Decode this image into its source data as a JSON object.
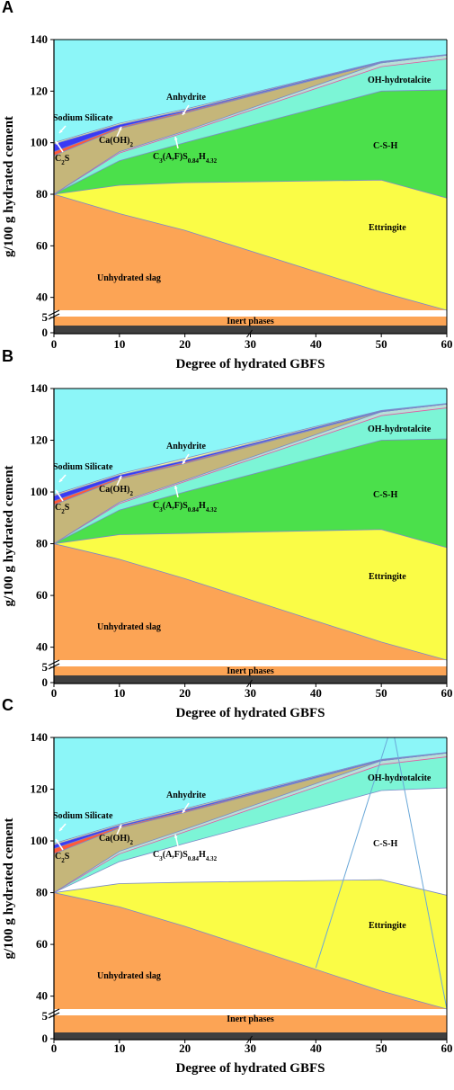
{
  "chart_data": [
    {
      "panel": "A",
      "type": "area",
      "xlabel": "Degree of hydrated GBFS",
      "ylabel": "g/100 g hydrated cement",
      "xlim": [
        0,
        60
      ],
      "ylim": [
        0,
        140
      ],
      "x_ticks": [
        0,
        10,
        20,
        30,
        40,
        50,
        60
      ],
      "y_ticks": [
        0,
        5,
        40,
        60,
        80,
        100,
        120,
        140
      ],
      "y_axis_break": "between 5 and 35",
      "x": [
        0,
        10,
        20,
        50,
        60
      ],
      "boundaries": [
        {
          "name": "Unhydrated slag (top)",
          "y": [
            80,
            72.5,
            66,
            42,
            35
          ]
        },
        {
          "name": "Ettringite (top)",
          "y": [
            80,
            83.5,
            84.5,
            85.5,
            78.5
          ]
        },
        {
          "name": "C-S-H (top)",
          "y": [
            80,
            93,
            100,
            120,
            120.5
          ]
        },
        {
          "name": "C3(A,F)S0.84H4.32 (top)",
          "y": [
            80,
            96,
            104,
            129.5,
            132.5
          ]
        },
        {
          "name": "OH-hydrotalcite (top)",
          "y": [
            80,
            96.5,
            104.5,
            131,
            134
          ]
        },
        {
          "name": "C2S (top)",
          "y": [
            95,
            105.5,
            111.5,
            131,
            134
          ]
        },
        {
          "name": "Ca(OH)2 (top)",
          "y": [
            96.5,
            106,
            112,
            131,
            134
          ]
        },
        {
          "name": "Sodium Silicate (top)",
          "y": [
            99.5,
            107,
            112.5,
            131.3,
            134
          ]
        },
        {
          "name": "Anhydrite (top)",
          "y": [
            100,
            107.5,
            113,
            131.5,
            134.2
          ]
        }
      ],
      "annotations": [
        "Sodium Silicate",
        "Ca(OH)2",
        "Anhydrite",
        "C2S",
        "C3(A,F)S0.84H4.32",
        "OH-hydrotalcite",
        "C-S-H",
        "Ettringite",
        "Unhydrated slag",
        "Inert phases"
      ]
    },
    {
      "panel": "B",
      "type": "area",
      "xlabel": "Degree of hydrated GBFS",
      "ylabel": "g/100 g hydrated cement",
      "xlim": [
        0,
        60
      ],
      "ylim": [
        0,
        140
      ],
      "x_ticks": [
        0,
        10,
        20,
        30,
        40,
        50,
        60
      ],
      "y_ticks": [
        0,
        5,
        40,
        60,
        80,
        100,
        120,
        140
      ],
      "y_axis_break": "between 5 and 35",
      "x": [
        0,
        10,
        20,
        50,
        60
      ],
      "boundaries": [
        {
          "name": "Unhydrated slag (top)",
          "y": [
            80,
            74,
            66.5,
            42,
            35
          ]
        },
        {
          "name": "Ettringite (top)",
          "y": [
            80,
            83.5,
            84,
            85.5,
            78.5
          ]
        },
        {
          "name": "C-S-H (top)",
          "y": [
            80,
            93,
            100,
            120,
            120.5
          ]
        },
        {
          "name": "C3(A,F)S0.84H4.32 (top)",
          "y": [
            80,
            95.5,
            104,
            129.5,
            132.5
          ]
        },
        {
          "name": "OH-hydrotalcite (top)",
          "y": [
            80,
            96,
            104.5,
            131,
            134
          ]
        },
        {
          "name": "C2S (top)",
          "y": [
            95,
            105,
            111,
            131,
            134
          ]
        },
        {
          "name": "Ca(OH)2 (top)",
          "y": [
            96.5,
            105.5,
            111.5,
            131,
            134
          ]
        },
        {
          "name": "Sodium Silicate (top)",
          "y": [
            98.5,
            106.5,
            112.2,
            131.3,
            134
          ]
        },
        {
          "name": "Anhydrite (top)",
          "y": [
            99,
            107,
            113,
            131.5,
            134.2
          ]
        }
      ],
      "annotations": [
        "Sodium Silicate",
        "Ca(OH)2",
        "Anhydrite",
        "C2S",
        "C3(A,F)S0.84H4.32",
        "OH-hydrotalcite",
        "C-S-H",
        "Ettringite",
        "Unhydrated slag",
        "Inert phases"
      ]
    },
    {
      "panel": "C",
      "type": "area",
      "xlabel": "Degree of hydrated GBFS",
      "ylabel": "g/100 g hydrated cement",
      "xlim": [
        0,
        60
      ],
      "ylim": [
        0,
        140
      ],
      "x_ticks": [
        0,
        10,
        20,
        30,
        40,
        50,
        60
      ],
      "y_ticks": [
        0,
        5,
        40,
        60,
        80,
        100,
        120,
        140
      ],
      "y_axis_break": "between 5 and 35",
      "x": [
        0,
        10,
        20,
        50,
        60
      ],
      "boundaries": [
        {
          "name": "Unhydrated slag (top)",
          "y": [
            80,
            74.5,
            67,
            42,
            35
          ]
        },
        {
          "name": "Ettringite (top)",
          "y": [
            80,
            83.5,
            84,
            85,
            79
          ]
        },
        {
          "name": "C-S-H (top)",
          "y": [
            80,
            92,
            99,
            119.5,
            120.5
          ]
        },
        {
          "name": "C3(A,F)S0.84H4.32 (top)",
          "y": [
            80,
            95,
            103.5,
            129.5,
            132.5
          ]
        },
        {
          "name": "OH-hydrotalcite (top)",
          "y": [
            80,
            96,
            104.5,
            131,
            134
          ]
        },
        {
          "name": "C2S (top)",
          "y": [
            95,
            105,
            111,
            131,
            134
          ]
        },
        {
          "name": "Ca(OH)2 (top)",
          "y": [
            97,
            105.5,
            111.5,
            131,
            134
          ]
        },
        {
          "name": "Sodium Silicate (top)",
          "y": [
            98.5,
            106,
            112,
            131.3,
            134
          ]
        },
        {
          "name": "Anhydrite (top)",
          "y": [
            99,
            106.5,
            112.5,
            131.5,
            134.2
          ]
        }
      ],
      "extra_lines": [
        {
          "x": [
            40,
            51
          ],
          "y": [
            51,
            140
          ]
        },
        {
          "x": [
            52,
            60
          ],
          "y": [
            140,
            35
          ]
        }
      ],
      "annotations": [
        "Sodium Silicate",
        "Ca(OH)2",
        "Anhydrite",
        "C2S",
        "C3(A,F)S0.84H4.32",
        "OH-hydrotalcite",
        "C-S-H",
        "Ettringite",
        "Unhydrated slag",
        "Inert phases"
      ]
    }
  ],
  "colors": {
    "unhydrated_slag": "#fca455",
    "ettringite": "#fafc46",
    "csh_ab": "#4be04b",
    "csh_c": "#ffffff",
    "c3af": "#7cf5d6",
    "hydrotalcite": "#b8e0d8",
    "c2s": "#c5b67a",
    "caoh2": "#ff5a3a",
    "sodium_silicate": "#3a3af5",
    "anhydrite": "#f8f3a0",
    "background": "#8cf6f8",
    "inert_orange": "#fca455",
    "inert_dark": "#3f3f3f",
    "outline": "#7a8ac8"
  },
  "panels": {
    "a": "A",
    "b": "B",
    "c": "C"
  },
  "text": {
    "ylabel": "g/100 g hydrated cement",
    "xlabel": "Degree of hydrated GBFS",
    "sodium": "Sodium Silicate",
    "caoh": "Ca(OH)",
    "caoh_sub": "2",
    "anhydrite": "Anhydrite",
    "c2s": "C",
    "c2s_sub": "2",
    "c2s_tail": "S",
    "c3af_a": "C",
    "c3af_sub": "3",
    "c3af_b": "(A,F)S",
    "c3af_sub2": "0.84",
    "c3af_c": "H",
    "c3af_sub3": "4.32",
    "hydrotalcite": "OH-hydrotalcite",
    "csh": "C-S-H",
    "ettringite": "Ettringite",
    "slag": "Unhydrated slag",
    "inert": "Inert phases"
  }
}
